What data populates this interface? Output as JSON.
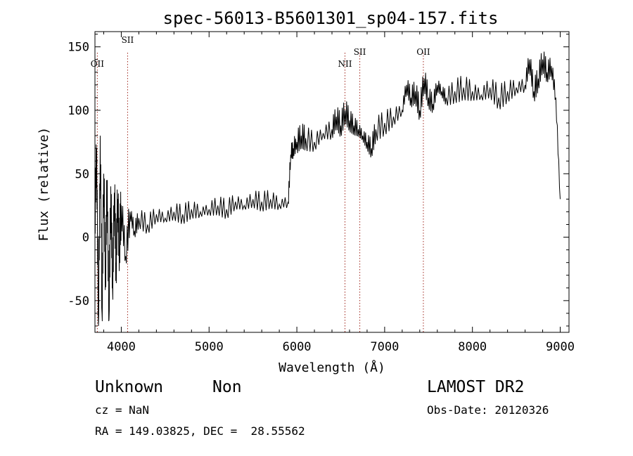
{
  "chart_data": {
    "type": "line",
    "title": "spec-56013-B5601301_sp04-157.fits",
    "xlabel": "Wavelength (Å)",
    "ylabel": "Flux (relative)",
    "xlim": [
      3700,
      9100
    ],
    "ylim": [
      -75,
      162
    ],
    "x_ticks": [
      4000,
      5000,
      6000,
      7000,
      8000,
      9000
    ],
    "y_ticks": [
      -50,
      0,
      50,
      100,
      150
    ],
    "grid": false,
    "series": [
      {
        "x": [
          3700,
          3720,
          3740,
          3760,
          3780,
          3800,
          3820,
          3840,
          3860,
          3880,
          3900,
          3920,
          3940,
          3960,
          3980,
          4000,
          4050,
          4100,
          4150,
          4200,
          4300,
          4400,
          4500,
          4600,
          4700,
          4800,
          4900,
          5000,
          5100,
          5200,
          5300,
          5400,
          5500,
          5600,
          5700,
          5800,
          5900,
          5930,
          5960,
          6000,
          6050,
          6100,
          6200,
          6300,
          6400,
          6450,
          6500,
          6550,
          6600,
          6650,
          6700,
          6750,
          6800,
          6850,
          6900,
          7000,
          7100,
          7200,
          7250,
          7300,
          7350,
          7400,
          7450,
          7500,
          7550,
          7600,
          7650,
          7700,
          7800,
          7900,
          8000,
          8100,
          8200,
          8300,
          8400,
          8500,
          8600,
          8650,
          8700,
          8750,
          8800,
          8850,
          8900,
          8950,
          9000
        ],
        "y": [
          10,
          70,
          -70,
          80,
          -60,
          50,
          -30,
          45,
          -65,
          40,
          -40,
          35,
          -20,
          30,
          -10,
          25,
          -15,
          20,
          5,
          15,
          10,
          18,
          15,
          20,
          18,
          22,
          20,
          22,
          25,
          22,
          28,
          25,
          30,
          28,
          30,
          26,
          28,
          65,
          70,
          75,
          80,
          78,
          75,
          82,
          85,
          95,
          88,
          100,
          92,
          88,
          85,
          80,
          75,
          70,
          85,
          90,
          95,
          100,
          120,
          110,
          115,
          100,
          125,
          110,
          105,
          120,
          115,
          110,
          115,
          118,
          115,
          112,
          118,
          110,
          115,
          118,
          120,
          140,
          115,
          125,
          140,
          130,
          135,
          110,
          30
        ]
      }
    ],
    "lines": [
      {
        "label": "OII",
        "x": 3727
      },
      {
        "label": "SII",
        "x": 4072
      },
      {
        "label": "NII",
        "x": 6548
      },
      {
        "label": "SII",
        "x": 6717
      },
      {
        "label": "OII",
        "x": 7441
      }
    ]
  },
  "footer": {
    "class_label": "Unknown",
    "subclass_label": "Non",
    "survey": "LAMOST DR2",
    "cz": "cz = NaN",
    "obs_date": "Obs-Date: 20120326",
    "radec": "RA = 149.03825, DEC =  28.55562"
  }
}
